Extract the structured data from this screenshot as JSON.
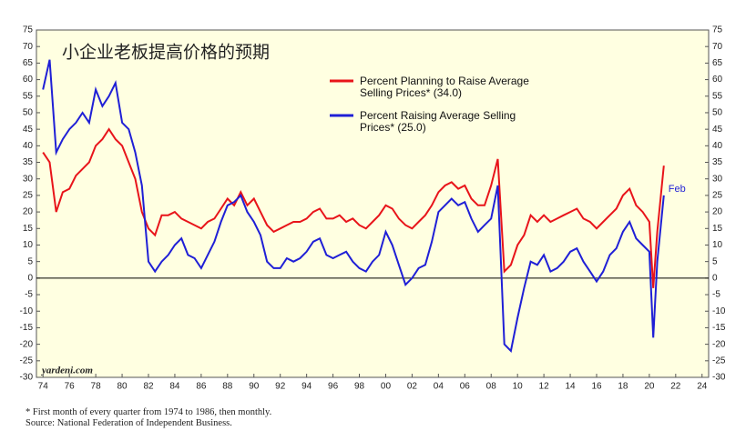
{
  "chart_data": {
    "type": "line",
    "title": "小企业老板提高价格的预期",
    "annotations": [
      "Feb",
      "yardeni.com"
    ],
    "notes": [
      "* First month of every quarter from 1974 to 1986, then monthly.",
      "Source: National Federation of Independent Business."
    ],
    "x": [
      1974,
      1974.5,
      1975,
      1975.5,
      1976,
      1976.5,
      1977,
      1977.5,
      1978,
      1978.5,
      1979,
      1979.5,
      1980,
      1980.5,
      1981,
      1981.5,
      1982,
      1982.5,
      1983,
      1983.5,
      1984,
      1984.5,
      1985,
      1985.5,
      1986,
      1986.5,
      1987,
      1987.5,
      1988,
      1988.5,
      1989,
      1989.5,
      1990,
      1990.5,
      1991,
      1991.5,
      1992,
      1992.5,
      1993,
      1993.5,
      1994,
      1994.5,
      1995,
      1995.5,
      1996,
      1996.5,
      1997,
      1997.5,
      1998,
      1998.5,
      1999,
      1999.5,
      2000,
      2000.5,
      2001,
      2001.5,
      2002,
      2002.5,
      2003,
      2003.5,
      2004,
      2004.5,
      2005,
      2005.5,
      2006,
      2006.5,
      2007,
      2007.5,
      2008,
      2008.5,
      2009,
      2009.5,
      2010,
      2010.5,
      2011,
      2011.5,
      2012,
      2012.5,
      2013,
      2013.5,
      2014,
      2014.5,
      2015,
      2015.5,
      2016,
      2016.5,
      2017,
      2017.5,
      2018,
      2018.5,
      2019,
      2019.5,
      2020,
      2020.3,
      2020.6,
      2021.1
    ],
    "series": [
      {
        "name": "Percent Planning to Raise Average Selling Prices* (34.0)",
        "color": "#e8141a",
        "values": [
          38,
          35,
          20,
          26,
          27,
          31,
          33,
          35,
          40,
          42,
          45,
          42,
          40,
          35,
          30,
          20,
          15,
          13,
          19,
          19,
          20,
          18,
          17,
          16,
          15,
          17,
          18,
          21,
          24,
          22,
          26,
          22,
          24,
          20,
          16,
          14,
          15,
          16,
          17,
          17,
          18,
          20,
          21,
          18,
          18,
          19,
          17,
          18,
          16,
          15,
          17,
          19,
          22,
          21,
          18,
          16,
          15,
          17,
          19,
          22,
          26,
          28,
          29,
          27,
          28,
          24,
          22,
          22,
          28,
          36,
          2,
          4,
          10,
          13,
          19,
          17,
          19,
          17,
          18,
          19,
          20,
          21,
          18,
          17,
          15,
          17,
          19,
          21,
          25,
          27,
          22,
          20,
          17,
          -3,
          14,
          34
        ]
      },
      {
        "name": "Percent Raising Average Selling Prices* (25.0)",
        "color": "#1f1fd6",
        "values": [
          57,
          66,
          38,
          42,
          45,
          47,
          50,
          47,
          57,
          52,
          55,
          59,
          47,
          45,
          38,
          28,
          5,
          2,
          5,
          7,
          10,
          12,
          7,
          6,
          3,
          7,
          11,
          17,
          22,
          23,
          25,
          20,
          17,
          13,
          5,
          3,
          3,
          6,
          5,
          6,
          8,
          11,
          12,
          7,
          6,
          7,
          8,
          5,
          3,
          2,
          5,
          7,
          14,
          10,
          4,
          -2,
          0,
          3,
          4,
          11,
          20,
          22,
          24,
          22,
          23,
          18,
          14,
          16,
          18,
          28,
          -20,
          -22,
          -12,
          -3,
          5,
          4,
          7,
          2,
          3,
          5,
          8,
          9,
          5,
          2,
          -1,
          2,
          7,
          9,
          14,
          17,
          12,
          10,
          8,
          -18,
          5,
          25
        ]
      }
    ],
    "xlim": [
      1973.5,
      2024.5
    ],
    "xticks": [
      {
        "value": 1974,
        "label": "74"
      },
      {
        "value": 1976,
        "label": "76"
      },
      {
        "value": 1978,
        "label": "78"
      },
      {
        "value": 1980,
        "label": "80"
      },
      {
        "value": 1982,
        "label": "82"
      },
      {
        "value": 1984,
        "label": "84"
      },
      {
        "value": 1986,
        "label": "86"
      },
      {
        "value": 1988,
        "label": "88"
      },
      {
        "value": 1990,
        "label": "90"
      },
      {
        "value": 1992,
        "label": "92"
      },
      {
        "value": 1994,
        "label": "94"
      },
      {
        "value": 1996,
        "label": "96"
      },
      {
        "value": 1998,
        "label": "98"
      },
      {
        "value": 2000,
        "label": "00"
      },
      {
        "value": 2002,
        "label": "02"
      },
      {
        "value": 2004,
        "label": "04"
      },
      {
        "value": 2006,
        "label": "06"
      },
      {
        "value": 2008,
        "label": "08"
      },
      {
        "value": 2010,
        "label": "10"
      },
      {
        "value": 2012,
        "label": "12"
      },
      {
        "value": 2014,
        "label": "14"
      },
      {
        "value": 2016,
        "label": "16"
      },
      {
        "value": 2018,
        "label": "18"
      },
      {
        "value": 2020,
        "label": "20"
      },
      {
        "value": 2022,
        "label": "22"
      },
      {
        "value": 2024,
        "label": "24"
      }
    ],
    "ylim": [
      -30,
      75
    ],
    "yticks": [
      -30,
      -25,
      -20,
      -15,
      -10,
      -5,
      0,
      5,
      10,
      15,
      20,
      25,
      30,
      35,
      40,
      45,
      50,
      55,
      60,
      65,
      70,
      75
    ]
  }
}
